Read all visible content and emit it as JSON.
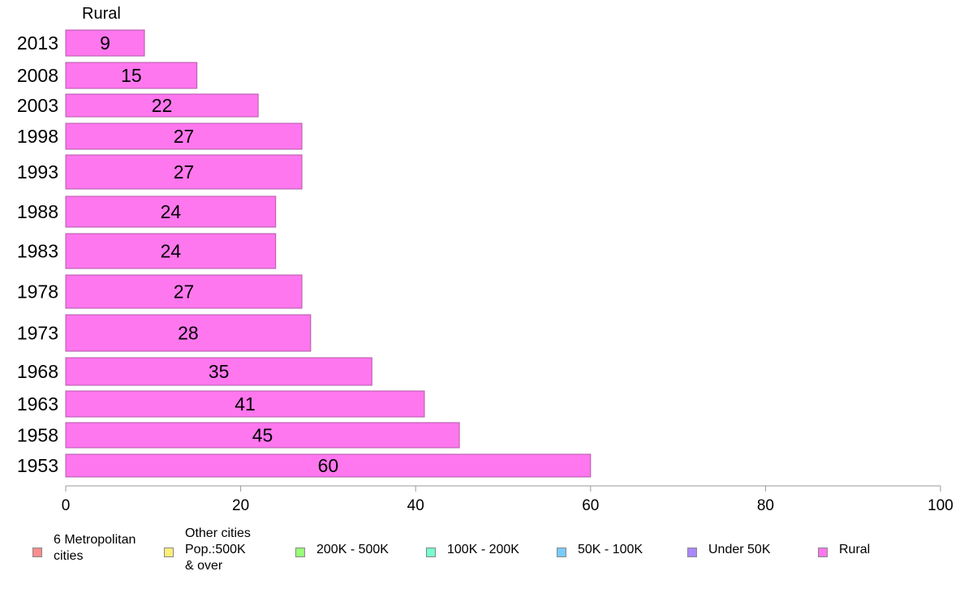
{
  "chart_data": {
    "type": "bar",
    "orientation": "horizontal",
    "title": "Rural",
    "categories": [
      "2013",
      "2008",
      "2003",
      "1998",
      "1993",
      "1988",
      "1983",
      "1978",
      "1973",
      "1968",
      "1963",
      "1958",
      "1953"
    ],
    "values": [
      9,
      15,
      22,
      27,
      27,
      24,
      24,
      27,
      28,
      35,
      41,
      45,
      60
    ],
    "data_labels": [
      "9",
      "15",
      "22",
      "27",
      "27",
      "24",
      "24",
      "27",
      "28",
      "35",
      "41",
      "45",
      "60"
    ],
    "xlim": [
      0,
      100
    ],
    "x_ticks": [
      "0",
      "20",
      "40",
      "60",
      "80",
      "100"
    ],
    "bar_color": "#ff77ee",
    "legend_placement": "bottom",
    "legend": [
      {
        "label": "6 Metropolitan\n cities",
        "color": "#ff8c8c"
      },
      {
        "label": "Other cities\nPop.:500K\n & over",
        "color": "#ffee77"
      },
      {
        "label": "200K - 500K",
        "color": "#99ff77"
      },
      {
        "label": "100K - 200K",
        "color": "#77ffcc"
      },
      {
        "label": "50K - 100K",
        "color": "#77ccff"
      },
      {
        "label": "Under 50K",
        "color": "#aa88ff"
      },
      {
        "label": "Rural",
        "color": "#ff77ee"
      }
    ]
  }
}
